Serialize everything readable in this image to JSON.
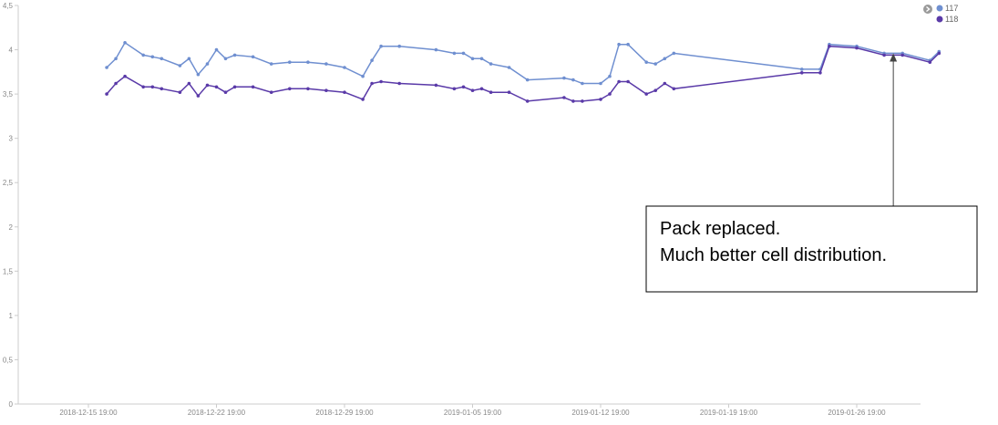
{
  "chart_data": {
    "type": "line",
    "title": "",
    "xlabel": "",
    "ylabel": "",
    "ylim": [
      0,
      4.5
    ],
    "y_ticks": [
      0,
      0.5,
      1,
      1.5,
      2,
      2.5,
      3,
      3.5,
      4,
      4.5
    ],
    "y_tick_labels": [
      "0",
      "0,5",
      "1",
      "1,5",
      "2",
      "2,5",
      "3",
      "3,5",
      "4",
      "4,5"
    ],
    "x_range_days": [
      -1.0,
      45.5
    ],
    "x_ticks": [
      {
        "label": "2018-12-15 19:00",
        "day": 0
      },
      {
        "label": "2018-12-22 19:00",
        "day": 7
      },
      {
        "label": "2018-12-29 19:00",
        "day": 14
      },
      {
        "label": "2019-01-05 19:00",
        "day": 21
      },
      {
        "label": "2019-01-12 19:00",
        "day": 28
      },
      {
        "label": "2019-01-19 19:00",
        "day": 35
      },
      {
        "label": "2019-01-26 19:00",
        "day": 42
      }
    ],
    "grid": false,
    "legend_position": "top-right",
    "series": [
      {
        "name": "117",
        "color": "#6f8fd0",
        "points": [
          [
            1.0,
            3.8
          ],
          [
            1.5,
            3.9
          ],
          [
            2.0,
            4.08
          ],
          [
            3.0,
            3.94
          ],
          [
            3.5,
            3.92
          ],
          [
            4.0,
            3.9
          ],
          [
            5.0,
            3.82
          ],
          [
            5.5,
            3.9
          ],
          [
            6.0,
            3.72
          ],
          [
            6.5,
            3.84
          ],
          [
            7.0,
            4.0
          ],
          [
            7.5,
            3.9
          ],
          [
            8.0,
            3.94
          ],
          [
            9.0,
            3.92
          ],
          [
            10.0,
            3.84
          ],
          [
            11.0,
            3.86
          ],
          [
            12.0,
            3.86
          ],
          [
            13.0,
            3.84
          ],
          [
            14.0,
            3.8
          ],
          [
            15.0,
            3.7
          ],
          [
            15.5,
            3.88
          ],
          [
            16.0,
            4.04
          ],
          [
            17.0,
            4.04
          ],
          [
            19.0,
            4.0
          ],
          [
            20.0,
            3.96
          ],
          [
            20.5,
            3.96
          ],
          [
            21.0,
            3.9
          ],
          [
            21.5,
            3.9
          ],
          [
            22.0,
            3.84
          ],
          [
            23.0,
            3.8
          ],
          [
            24.0,
            3.66
          ],
          [
            26.0,
            3.68
          ],
          [
            26.5,
            3.66
          ],
          [
            27.0,
            3.62
          ],
          [
            28.0,
            3.62
          ],
          [
            28.5,
            3.7
          ],
          [
            29.0,
            4.06
          ],
          [
            29.5,
            4.06
          ],
          [
            30.5,
            3.86
          ],
          [
            31.0,
            3.84
          ],
          [
            31.5,
            3.9
          ],
          [
            32.0,
            3.96
          ],
          [
            39.0,
            3.78
          ],
          [
            40.0,
            3.78
          ],
          [
            40.5,
            4.06
          ],
          [
            42.0,
            4.04
          ],
          [
            43.5,
            3.96
          ],
          [
            44.5,
            3.96
          ],
          [
            46.0,
            3.88
          ],
          [
            46.5,
            3.98
          ]
        ]
      },
      {
        "name": "118",
        "color": "#5a3aa8",
        "points": [
          [
            1.0,
            3.5
          ],
          [
            1.5,
            3.62
          ],
          [
            2.0,
            3.7
          ],
          [
            3.0,
            3.58
          ],
          [
            3.5,
            3.58
          ],
          [
            4.0,
            3.56
          ],
          [
            5.0,
            3.52
          ],
          [
            5.5,
            3.62
          ],
          [
            6.0,
            3.48
          ],
          [
            6.5,
            3.6
          ],
          [
            7.0,
            3.58
          ],
          [
            7.5,
            3.52
          ],
          [
            8.0,
            3.58
          ],
          [
            9.0,
            3.58
          ],
          [
            10.0,
            3.52
          ],
          [
            11.0,
            3.56
          ],
          [
            12.0,
            3.56
          ],
          [
            13.0,
            3.54
          ],
          [
            14.0,
            3.52
          ],
          [
            15.0,
            3.44
          ],
          [
            15.5,
            3.62
          ],
          [
            16.0,
            3.64
          ],
          [
            17.0,
            3.62
          ],
          [
            19.0,
            3.6
          ],
          [
            20.0,
            3.56
          ],
          [
            20.5,
            3.58
          ],
          [
            21.0,
            3.54
          ],
          [
            21.5,
            3.56
          ],
          [
            22.0,
            3.52
          ],
          [
            23.0,
            3.52
          ],
          [
            24.0,
            3.42
          ],
          [
            26.0,
            3.46
          ],
          [
            26.5,
            3.42
          ],
          [
            27.0,
            3.42
          ],
          [
            28.0,
            3.44
          ],
          [
            28.5,
            3.5
          ],
          [
            29.0,
            3.64
          ],
          [
            29.5,
            3.64
          ],
          [
            30.5,
            3.5
          ],
          [
            31.0,
            3.54
          ],
          [
            31.5,
            3.62
          ],
          [
            32.0,
            3.56
          ],
          [
            39.0,
            3.74
          ],
          [
            40.0,
            3.74
          ],
          [
            40.5,
            4.04
          ],
          [
            42.0,
            4.02
          ],
          [
            43.5,
            3.94
          ],
          [
            44.5,
            3.94
          ],
          [
            46.0,
            3.86
          ],
          [
            46.5,
            3.96
          ]
        ]
      }
    ],
    "annotation": {
      "lines": [
        "Pack replaced.",
        "Much better cell distribution."
      ],
      "arrow_target": {
        "day": 44.0,
        "value": 3.96
      }
    }
  },
  "legend_nav_icon": "chevron-right-icon"
}
